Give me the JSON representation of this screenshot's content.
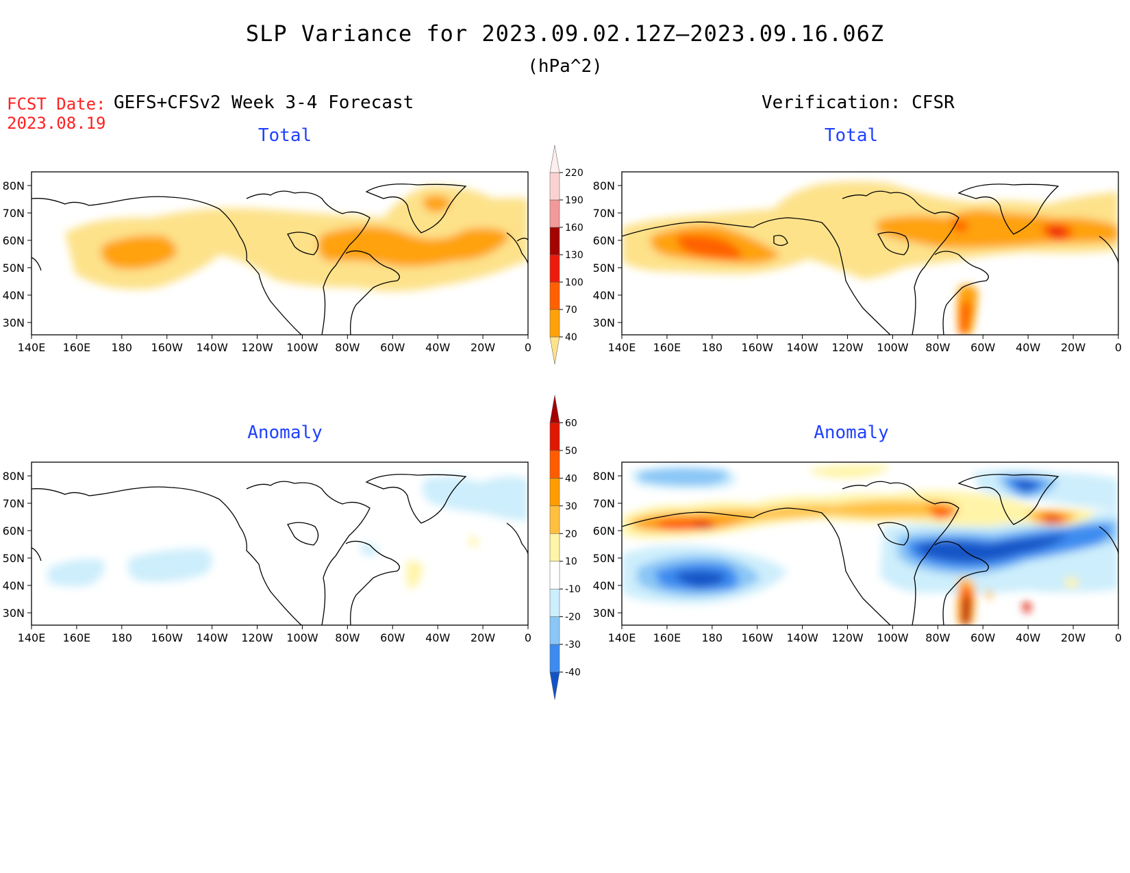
{
  "title": "SLP Variance for 2023.09.02.12Z–2023.09.16.06Z",
  "units": "(hPa^2)",
  "fcst_date_label": "FCST Date:",
  "fcst_date_value": "2023.08.19",
  "left_heading": "GEFS+CFSv2 Week 3-4 Forecast",
  "right_heading": "Verification: CFSR",
  "panel_titles": {
    "total": "Total",
    "anomaly": "Anomaly"
  },
  "lat_labels": [
    "80N",
    "70N",
    "60N",
    "50N",
    "40N",
    "30N"
  ],
  "lon_labels": [
    "140E",
    "160E",
    "180",
    "160W",
    "140W",
    "120W",
    "100W",
    "80W",
    "60W",
    "40W",
    "20W",
    "0"
  ],
  "total_colorbar": {
    "levels": [
      "40",
      "70",
      "100",
      "130",
      "160",
      "190",
      "220"
    ],
    "colors": [
      "#fde28a",
      "#ffa20a",
      "#ff6000",
      "#ec1c0c",
      "#a40400",
      "#f29a9a",
      "#fbd2d2",
      "#ffeeee"
    ]
  },
  "anomaly_colorbar": {
    "levels": [
      "-40",
      "-30",
      "-20",
      "-10",
      "10",
      "20",
      "30",
      "40",
      "50",
      "60"
    ],
    "colors": [
      "#1254c6",
      "#3c8cf0",
      "#8ac6f6",
      "#cdeefc",
      "#ffffff",
      "#fff4a8",
      "#ffc040",
      "#ff9c00",
      "#ff5c00",
      "#e01800",
      "#a60000"
    ]
  }
}
